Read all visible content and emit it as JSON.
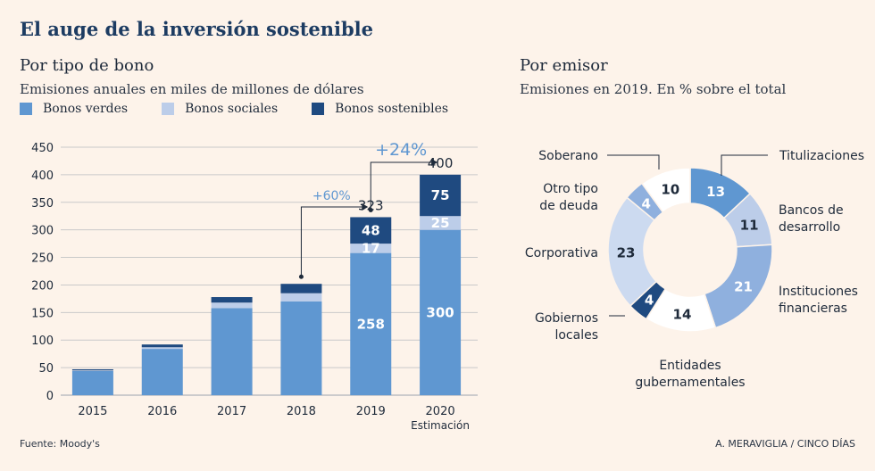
{
  "title": "El auge de la inversión sostenible",
  "source": "Fuente: Moody's",
  "credit": "A. MERAVIGLIA / CINCO DÍAS",
  "colors": {
    "verdes": "#5f97d1",
    "sociales": "#bccde9",
    "sostenibles": "#1f4a80",
    "background": "#fdf3ea"
  },
  "chart_data": [
    {
      "type": "bar",
      "title": "Por tipo de bono",
      "subtitle": "Emisiones anuales en miles de millones de dólares",
      "categories": [
        "2015",
        "2016",
        "2017",
        "2018",
        "2019",
        "2020"
      ],
      "category_notes": [
        "",
        "",
        "",
        "",
        "",
        "Estimación"
      ],
      "series": [
        {
          "name": "Bonos verdes",
          "values": [
            44,
            84,
            158,
            170,
            258,
            300
          ]
        },
        {
          "name": "Bonos sociales",
          "values": [
            1,
            3,
            10,
            15,
            17,
            25
          ]
        },
        {
          "name": "Bonos sostenibles",
          "values": [
            2,
            5,
            10,
            17,
            48,
            75
          ]
        }
      ],
      "labels": {
        "2019": {
          "Bonos verdes": "258",
          "Bonos sociales": "17",
          "Bonos sostenibles": "48",
          "total": "323"
        },
        "2020": {
          "Bonos verdes": "300",
          "Bonos sociales": "25",
          "Bonos sostenibles": "75",
          "total": "400"
        }
      },
      "annotations": [
        {
          "text": "+60%",
          "from": "2018",
          "to": "2019"
        },
        {
          "text": "+24%",
          "from": "2019",
          "to": "2020"
        }
      ],
      "yticks": [
        0,
        50,
        100,
        150,
        200,
        250,
        300,
        350,
        400,
        450
      ],
      "ylim": [
        0,
        450
      ],
      "grid": true,
      "legend": "top-left"
    },
    {
      "type": "pie",
      "title": "Por emisor",
      "subtitle": "Emisiones en 2019. En % sobre el total",
      "donut": true,
      "slices": [
        {
          "label": "Titulizaciones",
          "value": 13,
          "color": "#5f97d1"
        },
        {
          "label": "Bancos de desarrollo",
          "value": 11,
          "color": "#bccde9"
        },
        {
          "label": "Instituciones financieras",
          "value": 21,
          "color": "#8fb0de"
        },
        {
          "label": "Entidades gubernamentales",
          "value": 14,
          "color": "#ffffff"
        },
        {
          "label": "Gobiernos locales",
          "value": 4,
          "color": "#1f4a80"
        },
        {
          "label": "Corporativa",
          "value": 23,
          "color": "#ccdaf0"
        },
        {
          "label": "Otro tipo de deuda",
          "value": 4,
          "color": "#8fb0de"
        },
        {
          "label": "Soberano",
          "value": 10,
          "color": "#ffffff"
        }
      ]
    }
  ]
}
